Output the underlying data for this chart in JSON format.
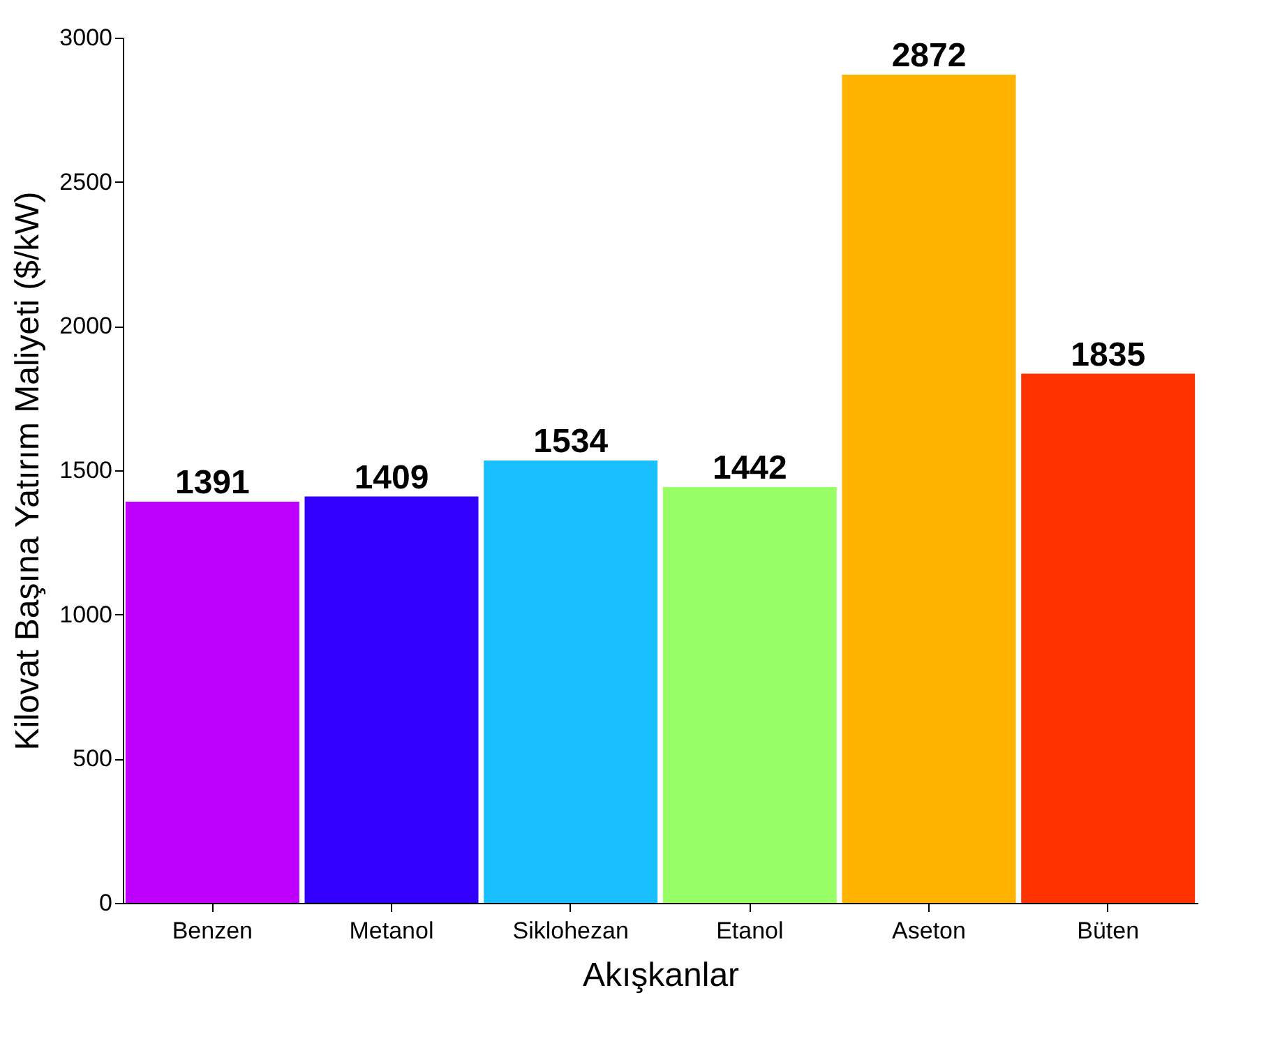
{
  "chart_data": {
    "type": "bar",
    "xlabel": "Akışkanlar",
    "ylabel": "Kilovat Başına Yatırım Maliyeti ($/kW)",
    "categories": [
      "Benzen",
      "Metanol",
      "Siklohezan",
      "Etanol",
      "Aseton",
      "Büten"
    ],
    "values": [
      1391,
      1409,
      1534,
      1442,
      2872,
      1835
    ],
    "colors": [
      "#bf00ff",
      "#3300ff",
      "#19bfff",
      "#99ff66",
      "#ffb300",
      "#ff3300"
    ],
    "ylim": [
      0,
      3000
    ],
    "yticks": [
      0,
      500,
      1000,
      1500,
      2000,
      2500,
      3000
    ],
    "grid": false,
    "data_labels": true
  }
}
